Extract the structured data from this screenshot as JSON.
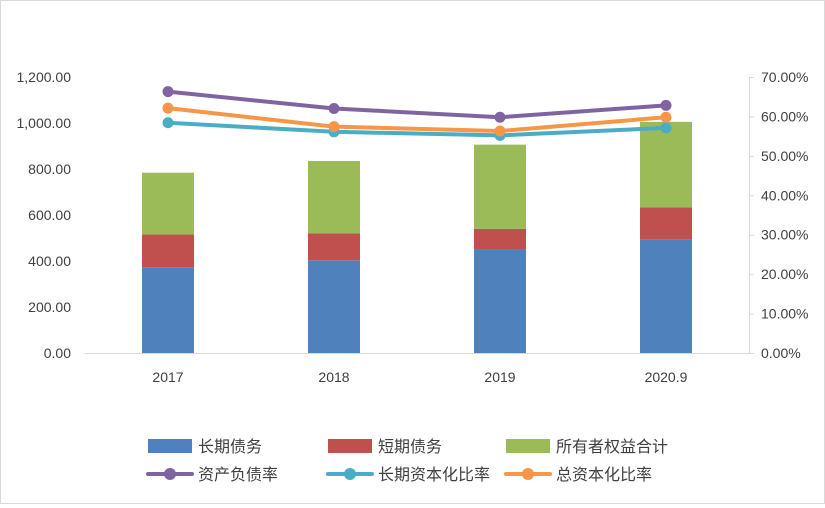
{
  "chart_data": {
    "type": "bar",
    "subtype": "stacked-bar with line overlay on secondary axis",
    "title": "",
    "categories": [
      "2017",
      "2018",
      "2019",
      "2020.9"
    ],
    "y_left": {
      "lim": [
        0,
        1200
      ],
      "ticks": [
        0,
        200,
        400,
        600,
        800,
        1000,
        1200
      ],
      "tick_labels": [
        "0.00",
        "200.00",
        "400.00",
        "600.00",
        "800.00",
        "1,000.00",
        "1,200.00"
      ]
    },
    "y_right": {
      "lim": [
        0,
        70
      ],
      "ticks": [
        0,
        10,
        20,
        30,
        40,
        50,
        60,
        70
      ],
      "tick_labels": [
        "0.00%",
        "10.00%",
        "20.00%",
        "30.00%",
        "40.00%",
        "50.00%",
        "60.00%",
        "70.00%"
      ]
    },
    "grid": false,
    "legend_position": "bottom",
    "bar_series": [
      {
        "name": "长期债务",
        "color": "#4f81bd",
        "values": [
          373,
          403,
          452,
          495
        ]
      },
      {
        "name": "短期债务",
        "color": "#c0504d",
        "values": [
          142,
          117,
          88,
          138
        ]
      },
      {
        "name": "所有者权益合计",
        "color": "#9bbb59",
        "values": [
          269,
          315,
          366,
          372
        ]
      }
    ],
    "line_series": [
      {
        "name": "资产负债率",
        "color": "#8064a2",
        "values": [
          66.3,
          62.0,
          59.8,
          62.8
        ]
      },
      {
        "name": "长期资本化比率",
        "color": "#4bacc6",
        "values": [
          58.4,
          56.1,
          55.2,
          57.1
        ]
      },
      {
        "name": "总资本化比率",
        "color": "#f79646",
        "values": [
          62.1,
          57.4,
          56.3,
          59.8
        ]
      }
    ]
  }
}
